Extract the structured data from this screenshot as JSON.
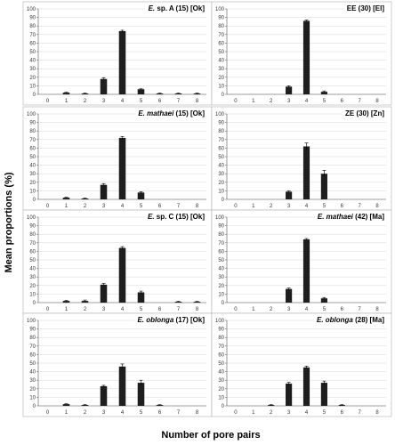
{
  "xlabel": "Number of pore pairs",
  "ylabel": "Mean proportions (%)",
  "chart_data": [
    {
      "type": "bar",
      "title_parts": [
        {
          "text": "E.",
          "italic": true
        },
        {
          "text": " sp. A (15) [Ok]",
          "italic": false
        }
      ],
      "title": "E. sp. A (15) [Ok]",
      "categories": [
        "0",
        "1",
        "2",
        "3",
        "4",
        "5",
        "6",
        "7",
        "8"
      ],
      "values": [
        0,
        2,
        1,
        18,
        74,
        6,
        1,
        1,
        1
      ],
      "errors": [
        0,
        0.5,
        0.5,
        1.5,
        1.0,
        0.5,
        0.5,
        0.5,
        0.5
      ],
      "ylim": [
        0,
        100
      ],
      "yticks": [
        0,
        10,
        20,
        30,
        40,
        50,
        60,
        70,
        80,
        90,
        100
      ]
    },
    {
      "type": "bar",
      "title_parts": [
        {
          "text": "EE (30) [El]",
          "italic": false
        }
      ],
      "title": "EE (30) [El]",
      "categories": [
        "0",
        "1",
        "2",
        "3",
        "4",
        "5",
        "6",
        "7",
        "8"
      ],
      "values": [
        0,
        0,
        0,
        9,
        86,
        3,
        0,
        0,
        0
      ],
      "errors": [
        0,
        0,
        0,
        1.0,
        1.0,
        1.0,
        0,
        0,
        0
      ],
      "ylim": [
        0,
        100
      ],
      "yticks": [
        0,
        10,
        20,
        30,
        40,
        50,
        60,
        70,
        80,
        90,
        100
      ]
    },
    {
      "type": "bar",
      "title_parts": [
        {
          "text": "E. mathaei",
          "italic": true
        },
        {
          "text": " (15) [Ok]",
          "italic": false
        }
      ],
      "title": "E. mathaei (15) [Ok]",
      "categories": [
        "0",
        "1",
        "2",
        "3",
        "4",
        "5",
        "6",
        "7",
        "8"
      ],
      "values": [
        0,
        2,
        1,
        17,
        72,
        8,
        0,
        0,
        0
      ],
      "errors": [
        0,
        0.5,
        0.5,
        1.5,
        1.5,
        1.0,
        0,
        0,
        0
      ],
      "ylim": [
        0,
        100
      ],
      "yticks": [
        0,
        10,
        20,
        30,
        40,
        50,
        60,
        70,
        80,
        90,
        100
      ]
    },
    {
      "type": "bar",
      "title_parts": [
        {
          "text": "ZE (30) [Zn]",
          "italic": false
        }
      ],
      "title": "ZE (30) [Zn]",
      "categories": [
        "0",
        "1",
        "2",
        "3",
        "4",
        "5",
        "6",
        "7",
        "8"
      ],
      "values": [
        0,
        0,
        0,
        9,
        62,
        30,
        0,
        0,
        0
      ],
      "errors": [
        0,
        0,
        0,
        1.0,
        4.0,
        4.0,
        0,
        0,
        0
      ],
      "ylim": [
        0,
        100
      ],
      "yticks": [
        0,
        10,
        20,
        30,
        40,
        50,
        60,
        70,
        80,
        90,
        100
      ]
    },
    {
      "type": "bar",
      "title_parts": [
        {
          "text": "E.",
          "italic": true
        },
        {
          "text": " sp. C (15) [Ok]",
          "italic": false
        }
      ],
      "title": "E. sp. C (15) [Ok]",
      "categories": [
        "0",
        "1",
        "2",
        "3",
        "4",
        "5",
        "6",
        "7",
        "8"
      ],
      "values": [
        0,
        2,
        2,
        21,
        64,
        12,
        0,
        1,
        1
      ],
      "errors": [
        0,
        0.5,
        1.0,
        1.5,
        1.5,
        1.5,
        0,
        0.5,
        0.5
      ],
      "ylim": [
        0,
        100
      ],
      "yticks": [
        0,
        10,
        20,
        30,
        40,
        50,
        60,
        70,
        80,
        90,
        100
      ]
    },
    {
      "type": "bar",
      "title_parts": [
        {
          "text": "E. mathaei",
          "italic": true
        },
        {
          "text": " (42) [Ma]",
          "italic": false
        }
      ],
      "title": "E. mathaei (42) [Ma]",
      "categories": [
        "0",
        "1",
        "2",
        "3",
        "4",
        "5",
        "6",
        "7",
        "8"
      ],
      "values": [
        0,
        0,
        0,
        16,
        74,
        5,
        0,
        0,
        0
      ],
      "errors": [
        0,
        0,
        0,
        1.0,
        1.0,
        1.0,
        0,
        0,
        0
      ],
      "ylim": [
        0,
        100
      ],
      "yticks": [
        0,
        10,
        20,
        30,
        40,
        50,
        60,
        70,
        80,
        90,
        100
      ]
    },
    {
      "type": "bar",
      "title_parts": [
        {
          "text": "E. oblonga",
          "italic": true
        },
        {
          "text": " (17) [Ok]",
          "italic": false
        }
      ],
      "title": "E. oblonga (17) [Ok]",
      "categories": [
        "0",
        "1",
        "2",
        "3",
        "4",
        "5",
        "6",
        "7",
        "8"
      ],
      "values": [
        0,
        2,
        1,
        23,
        46,
        27,
        1,
        0,
        0
      ],
      "errors": [
        0,
        0.5,
        0.5,
        1.0,
        3.0,
        3.0,
        0.5,
        0,
        0
      ],
      "ylim": [
        0,
        100
      ],
      "yticks": [
        0,
        10,
        20,
        30,
        40,
        50,
        60,
        70,
        80,
        90,
        100
      ]
    },
    {
      "type": "bar",
      "title_parts": [
        {
          "text": "E. oblonga",
          "italic": true
        },
        {
          "text": " (28) [Ma]",
          "italic": false
        }
      ],
      "title": "E. oblonga (28) [Ma]",
      "categories": [
        "0",
        "1",
        "2",
        "3",
        "4",
        "5",
        "6",
        "7",
        "8"
      ],
      "values": [
        0,
        0,
        1,
        26,
        45,
        27,
        1,
        0,
        0
      ],
      "errors": [
        0,
        0,
        0.5,
        1.5,
        1.5,
        2.0,
        0.5,
        0,
        0
      ],
      "ylim": [
        0,
        100
      ],
      "yticks": [
        0,
        10,
        20,
        30,
        40,
        50,
        60,
        70,
        80,
        90,
        100
      ]
    }
  ]
}
